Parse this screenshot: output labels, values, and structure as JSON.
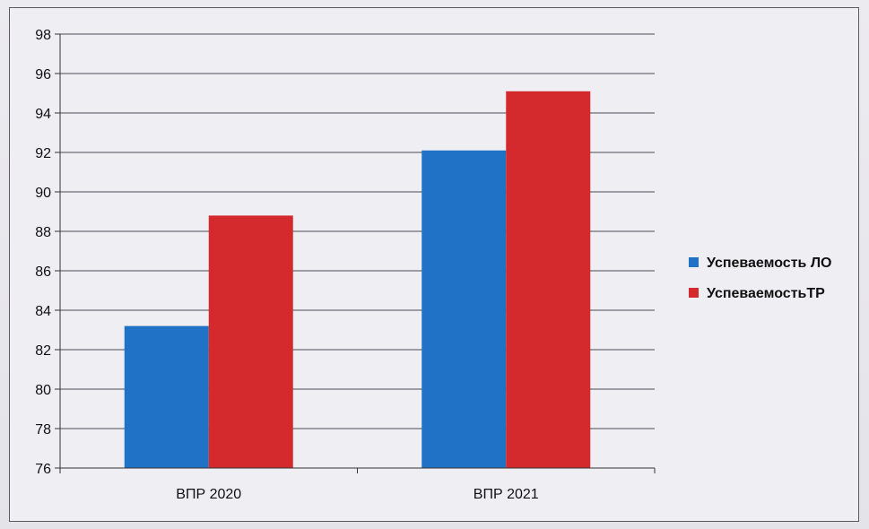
{
  "chart_data": {
    "type": "bar",
    "categories": [
      "ВПР 2020",
      "ВПР 2021"
    ],
    "series": [
      {
        "name": "Успеваемость ЛО",
        "color": "#1f72c6",
        "values": [
          83.2,
          92.1
        ]
      },
      {
        "name": "УспеваемостьТР",
        "color": "#d42a2e",
        "values": [
          88.8,
          95.1
        ]
      }
    ],
    "ylim": [
      76,
      98
    ],
    "yticks": [
      "76",
      "78",
      "80",
      "82",
      "84",
      "86",
      "88",
      "90",
      "92",
      "94",
      "96",
      "98"
    ],
    "grid": true,
    "legend_position": "right"
  }
}
